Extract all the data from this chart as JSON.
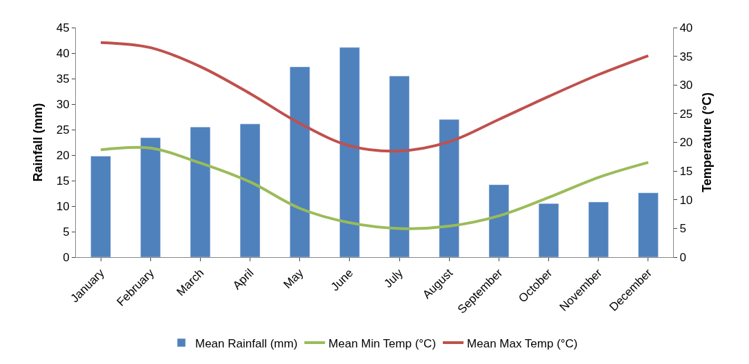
{
  "chart_data": {
    "type": "bar",
    "ylabel": "Rainfall (mm)",
    "y2label": "Temperature (°C)",
    "categories": [
      "January",
      "February",
      "March",
      "April",
      "May",
      "June",
      "July",
      "August",
      "September",
      "October",
      "November",
      "December"
    ],
    "series": [
      {
        "name": "Mean Rainfall (mm)",
        "color": "#4f81bd",
        "values": [
          19.8,
          23.4,
          25.5,
          26.1,
          37.3,
          41.1,
          35.5,
          27.0,
          14.2,
          10.5,
          10.8,
          12.6
        ]
      },
      {
        "name": "Mean Min Temp (°C)",
        "type": "line",
        "axis": "y2",
        "color": "#9bbb59",
        "values": [
          18.7,
          19.0,
          16.4,
          13.1,
          8.5,
          6.0,
          5.0,
          5.4,
          7.2,
          10.4,
          13.9,
          16.5
        ]
      },
      {
        "name": "Mean Max Temp (°C)",
        "type": "line",
        "axis": "y2",
        "color": "#c0504d",
        "values": [
          37.4,
          36.5,
          33.2,
          28.5,
          23.3,
          19.4,
          18.5,
          20.1,
          24.0,
          28.0,
          31.8,
          35.1
        ]
      }
    ],
    "ylim": [
      0,
      45
    ],
    "yticks": [
      0,
      5,
      10,
      15,
      20,
      25,
      30,
      35,
      40,
      45
    ],
    "y2lim": [
      0,
      40
    ],
    "y2ticks": [
      0,
      5,
      10,
      15,
      20,
      25,
      30,
      35,
      40
    ],
    "grid": false,
    "legend": "bottom",
    "marker": "none",
    "line_style": "solid"
  }
}
